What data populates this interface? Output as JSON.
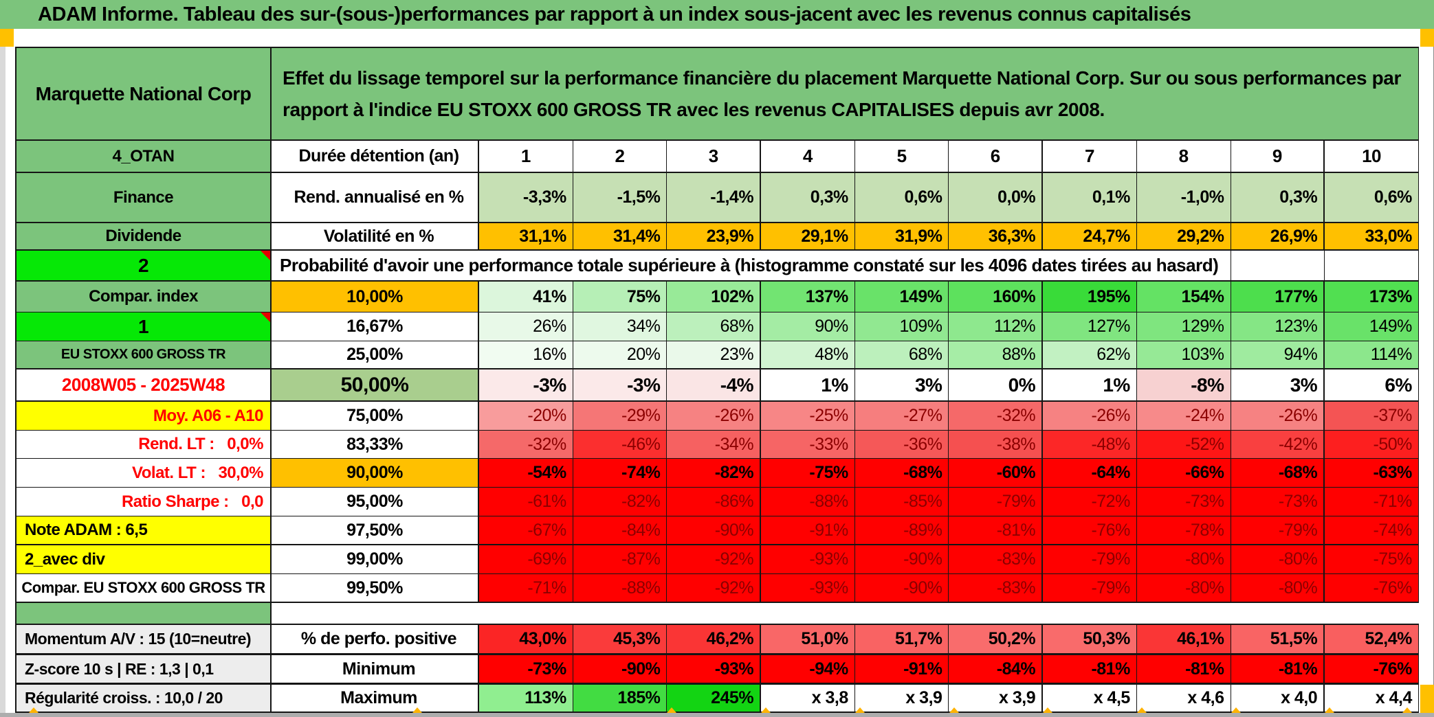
{
  "title": "ADAM Informe. Tableau des sur-(sous-)performances par rapport à un index sous-jacent avec les revenus connus capitalisés",
  "colors": {
    "header_green": "#7CC47C",
    "bright_green": "#06E806",
    "orange": "#FFC000",
    "yellow": "#FFFF00",
    "red": "#FF0000",
    "light_green": "#C6E0B4",
    "band_green": "#A9CE8E",
    "label_gray": "#EDEDED",
    "dark_red_text": "#8B0000",
    "red_text": "#FF0000"
  },
  "table": {
    "instrument": "Marquette National Corp",
    "description": "Effet du lissage temporel sur la performance financière du placement Marquette National Corp. Sur ou sous performances par rapport à l'indice EU STOXX 600 GROSS TR avec les revenus CAPITALISES depuis avr 2008.",
    "columns": [
      "1",
      "2",
      "3",
      "4",
      "5",
      "6",
      "7",
      "8",
      "9",
      "10"
    ],
    "rows": [
      {
        "id": "duree",
        "a": {
          "t": "4_OTAN",
          "bg": "#7CC47C"
        },
        "b": {
          "t": "Durée détention (an)",
          "align": "left"
        },
        "cells": {
          "v": [
            "1",
            "2",
            "3",
            "4",
            "5",
            "6",
            "7",
            "8",
            "9",
            "10"
          ],
          "bg": "#FFFFFF",
          "bold": true,
          "align": "center",
          "fs": 26
        }
      },
      {
        "id": "rend",
        "a": {
          "t": "Finance",
          "bg": "#7CC47C"
        },
        "b": {
          "t": "Rend. annualisé en %",
          "align": "left"
        },
        "cells": {
          "v": [
            "-3,3%",
            "-1,5%",
            "-1,4%",
            "0,3%",
            "0,6%",
            "0,0%",
            "0,1%",
            "-1,0%",
            "0,3%",
            "0,6%"
          ],
          "bg": "#C6E0B4",
          "bold": true
        }
      },
      {
        "id": "volat",
        "a": {
          "t": "Dividende",
          "bg": "#7CC47C"
        },
        "b": {
          "t": "Volatilité en %",
          "align": "left"
        },
        "cells": {
          "v": [
            "31,1%",
            "31,4%",
            "23,9%",
            "29,1%",
            "31,9%",
            "36,3%",
            "24,7%",
            "29,2%",
            "26,9%",
            "33,0%"
          ],
          "bg": "#FFC000",
          "bold": true
        }
      },
      {
        "id": "proba",
        "a": {
          "t": "2",
          "bg": "#06E806",
          "corner": true,
          "fs": 28
        },
        "merged": {
          "t": "Probabilité d'avoir une performance totale supérieure à (histogramme constaté sur les 4096 dates tirées au hasard)",
          "tail": 2
        }
      },
      {
        "id": "p10",
        "a": {
          "t": "Compar. index",
          "bg": "#7CC47C"
        },
        "b": {
          "t": "10,00%",
          "bg": "#FFC000",
          "align": "center"
        },
        "cells": {
          "v": [
            "41%",
            "75%",
            "102%",
            "137%",
            "149%",
            "160%",
            "195%",
            "154%",
            "177%",
            "173%"
          ],
          "bg": [
            "#DCF6DC",
            "#B6EFB6",
            "#98EA98",
            "#72E472",
            "#69E269",
            "#5DE15D",
            "#39DB39",
            "#64E264",
            "#4DDE4D",
            "#51DF51"
          ],
          "bold": true
        }
      },
      {
        "id": "p1667",
        "a": {
          "t": "1",
          "bg": "#06E806",
          "corner": true,
          "fs": 28
        },
        "b": {
          "t": "16,67%",
          "align": "center"
        },
        "cells": {
          "v": [
            "26%",
            "34%",
            "68%",
            "90%",
            "109%",
            "112%",
            "127%",
            "129%",
            "123%",
            "149%"
          ],
          "bg": [
            "#E8F9E8",
            "#E0F7E0",
            "#BCF0BC",
            "#A4ECA4",
            "#91E891",
            "#8EE88E",
            "#80E580",
            "#7FE57F",
            "#85E685",
            "#69E269"
          ],
          "bold": false
        }
      },
      {
        "id": "p25",
        "a": {
          "t": "EU STOXX 600 GROSS TR",
          "bg": "#7CC47C",
          "fs": 20
        },
        "b": {
          "t": "25,00%",
          "align": "center"
        },
        "cells": {
          "v": [
            "16%",
            "20%",
            "23%",
            "48%",
            "68%",
            "88%",
            "62%",
            "103%",
            "94%",
            "114%"
          ],
          "bg": [
            "#F1FCF1",
            "#EDFAED",
            "#EAF9EA",
            "#D2F4D2",
            "#BCF0BC",
            "#A6EDA6",
            "#C2F1C2",
            "#96E996",
            "#9FEB9F",
            "#8CE78C"
          ],
          "bold": false
        }
      },
      {
        "id": "p50",
        "a": {
          "t": "2008W05 - 2025W48",
          "bg": "#FFFFFF",
          "fg": "#FF0000",
          "fs": 26
        },
        "b": {
          "t": "50,00%",
          "bg": "#A9CE8E",
          "align": "center",
          "fs": 30
        },
        "cells": {
          "v": [
            "-3%",
            "-3%",
            "-4%",
            "1%",
            "3%",
            "0%",
            "1%",
            "-8%",
            "3%",
            "6%"
          ],
          "bg": [
            "#FBE9E9",
            "#FBE9E9",
            "#FAE5E5",
            "#FFFFFF",
            "#FFFFFF",
            "#FFFFFF",
            "#FFFFFF",
            "#F7D1D1",
            "#FFFFFF",
            "#FFFFFF"
          ],
          "bold": true,
          "fs": 28
        }
      },
      {
        "id": "p75",
        "a": {
          "t": "Moy. A06 - A10",
          "bg": "#FFFF00",
          "fg": "#FF0000",
          "align": "right"
        },
        "b": {
          "t": "75,00%",
          "align": "center"
        },
        "cells": {
          "v": [
            "-20%",
            "-29%",
            "-26%",
            "-25%",
            "-27%",
            "-32%",
            "-26%",
            "-24%",
            "-26%",
            "-37%"
          ],
          "bg": [
            "#F89C9C",
            "#F57676",
            "#F68282",
            "#F78686",
            "#F67E7E",
            "#F56969",
            "#F68282",
            "#F78A8A",
            "#F68282",
            "#F45454"
          ],
          "fg": "#8B0000",
          "bold": false
        }
      },
      {
        "id": "p8333",
        "a": {
          "t": "Rend. LT :   0,0%",
          "bg": "#FFFFFF",
          "fg": "#FF0000",
          "align": "right"
        },
        "b": {
          "t": "83,33%",
          "align": "center"
        },
        "cells": {
          "v": [
            "-32%",
            "-46%",
            "-34%",
            "-33%",
            "-36%",
            "-38%",
            "-48%",
            "-52%",
            "-42%",
            "-50%"
          ],
          "bg": [
            "#F56969",
            "#FB2F2F",
            "#F66161",
            "#F66565",
            "#F55858",
            "#F55050",
            "#FC2727",
            "#FE1616",
            "#F94040",
            "#FD1F1F"
          ],
          "fg": "#8B0000",
          "bold": false
        }
      },
      {
        "id": "p90",
        "a": {
          "t": "Volat. LT :   30,0%",
          "bg": "#FFFFFF",
          "fg": "#FF0000",
          "align": "right"
        },
        "b": {
          "t": "90,00%",
          "bg": "#FFC000",
          "align": "center"
        },
        "cells": {
          "v": [
            "-54%",
            "-74%",
            "-82%",
            "-75%",
            "-68%",
            "-60%",
            "-64%",
            "-66%",
            "-68%",
            "-63%"
          ],
          "bg": "#FF0000",
          "bold": true
        }
      },
      {
        "id": "p95",
        "a": {
          "t": "Ratio Sharpe :   0,0",
          "bg": "#FFFFFF",
          "fg": "#FF0000",
          "align": "right"
        },
        "b": {
          "t": "95,00%",
          "align": "center"
        },
        "cells": {
          "v": [
            "-61%",
            "-82%",
            "-86%",
            "-88%",
            "-85%",
            "-79%",
            "-72%",
            "-73%",
            "-73%",
            "-71%"
          ],
          "bg": "#FF0000",
          "fg": "#8B0000",
          "bold": false
        }
      },
      {
        "id": "p975",
        "a": {
          "t": "Note ADAM : 6,5",
          "bg": "#FFFF00",
          "align": "left"
        },
        "b": {
          "t": "97,50%",
          "align": "center"
        },
        "cells": {
          "v": [
            "-67%",
            "-84%",
            "-90%",
            "-91%",
            "-89%",
            "-81%",
            "-76%",
            "-78%",
            "-79%",
            "-74%"
          ],
          "bg": "#FF0000",
          "fg": "#8B0000",
          "bold": false
        }
      },
      {
        "id": "p99",
        "a": {
          "t": "2_avec div",
          "bg": "#FFFF00",
          "align": "left"
        },
        "b": {
          "t": "99,00%",
          "align": "center"
        },
        "cells": {
          "v": [
            "-69%",
            "-87%",
            "-92%",
            "-93%",
            "-90%",
            "-83%",
            "-79%",
            "-80%",
            "-80%",
            "-75%"
          ],
          "bg": "#FF0000",
          "fg": "#8B0000",
          "bold": false
        }
      },
      {
        "id": "p995",
        "a": {
          "t": "Compar. EU STOXX 600 GROSS TR",
          "bg": "#FFFFFF",
          "fs": 22
        },
        "b": {
          "t": "99,50%",
          "align": "center"
        },
        "cells": {
          "v": [
            "-71%",
            "-88%",
            "-92%",
            "-93%",
            "-90%",
            "-83%",
            "-79%",
            "-80%",
            "-80%",
            "-76%"
          ],
          "bg": "#FF0000",
          "fg": "#8B0000",
          "bold": false
        }
      },
      {
        "id": "spacer",
        "a": {
          "t": "",
          "bg": "#7CC47C"
        }
      },
      {
        "id": "mom",
        "a": {
          "t": "Momentum A/V : 15 (10=neutre)",
          "bg": "#EDEDED",
          "align": "left",
          "fs": 23
        },
        "b": {
          "t": "% de perfo. positive",
          "align": "left"
        },
        "cells": {
          "v": [
            "43,0%",
            "45,3%",
            "46,2%",
            "51,0%",
            "51,7%",
            "50,2%",
            "50,3%",
            "46,1%",
            "51,5%",
            "52,4%"
          ],
          "bg": [
            "#FB2525",
            "#FA3B3B",
            "#FA3535",
            "#F96767",
            "#F96363",
            "#F96C6C",
            "#F96B6B",
            "#FA3636",
            "#F96464",
            "#F95F5F"
          ],
          "bold": true
        }
      },
      {
        "id": "min",
        "a": {
          "t": "Z-score 10 s | RE : 1,3 | 0,1",
          "bg": "#EDEDED",
          "align": "left",
          "fs": 23
        },
        "b": {
          "t": "Minimum",
          "align": "left"
        },
        "cells": {
          "v": [
            "-73%",
            "-90%",
            "-93%",
            "-94%",
            "-91%",
            "-84%",
            "-81%",
            "-81%",
            "-81%",
            "-76%"
          ],
          "bg": "#FF0000",
          "bold": true
        }
      },
      {
        "id": "max",
        "a": {
          "t": "Régularité croiss. : 10,0 / 20",
          "bg": "#EDEDED",
          "align": "left",
          "fs": 23
        },
        "b": {
          "t": "Maximum",
          "align": "left"
        },
        "cells": {
          "v": [
            "113%",
            "185%",
            "245%",
            "x 3,8",
            "x 3,9",
            "x 3,9",
            "x 4,5",
            "x 4,6",
            "x 4,0",
            "x 4,4"
          ],
          "bg": [
            "#90EE90",
            "#42DC42",
            "#13D413",
            "#FFFFFF",
            "#FFFFFF",
            "#FFFFFF",
            "#FFFFFF",
            "#FFFFFF",
            "#FFFFFF",
            "#FFFFFF"
          ],
          "bold": true
        }
      }
    ]
  }
}
